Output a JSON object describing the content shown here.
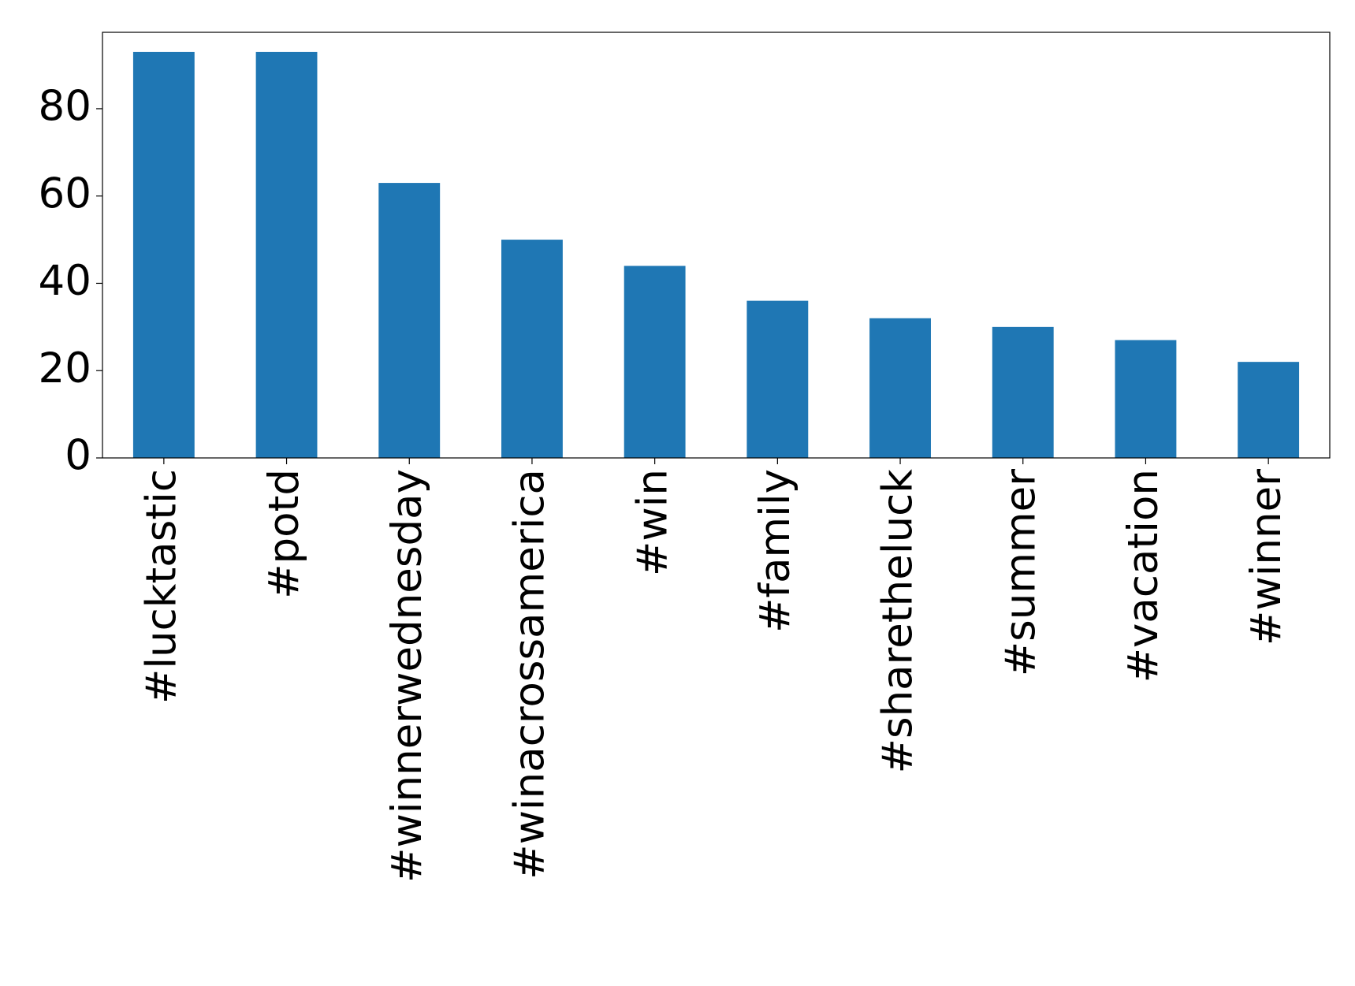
{
  "chart_data": {
    "type": "bar",
    "categories": [
      "#lucktastic",
      "#potd",
      "#winnerwednesday",
      "#winacrossamerica",
      "#win",
      "#family",
      "#sharetheluck",
      "#summer",
      "#vacation",
      "#winner"
    ],
    "values": [
      93,
      93,
      63,
      50,
      44,
      36,
      32,
      30,
      27,
      22
    ],
    "color": "#1f77b4",
    "ylim": [
      0,
      97.5
    ],
    "yticks": [
      0,
      20,
      40,
      60,
      80
    ],
    "grid": false
  }
}
